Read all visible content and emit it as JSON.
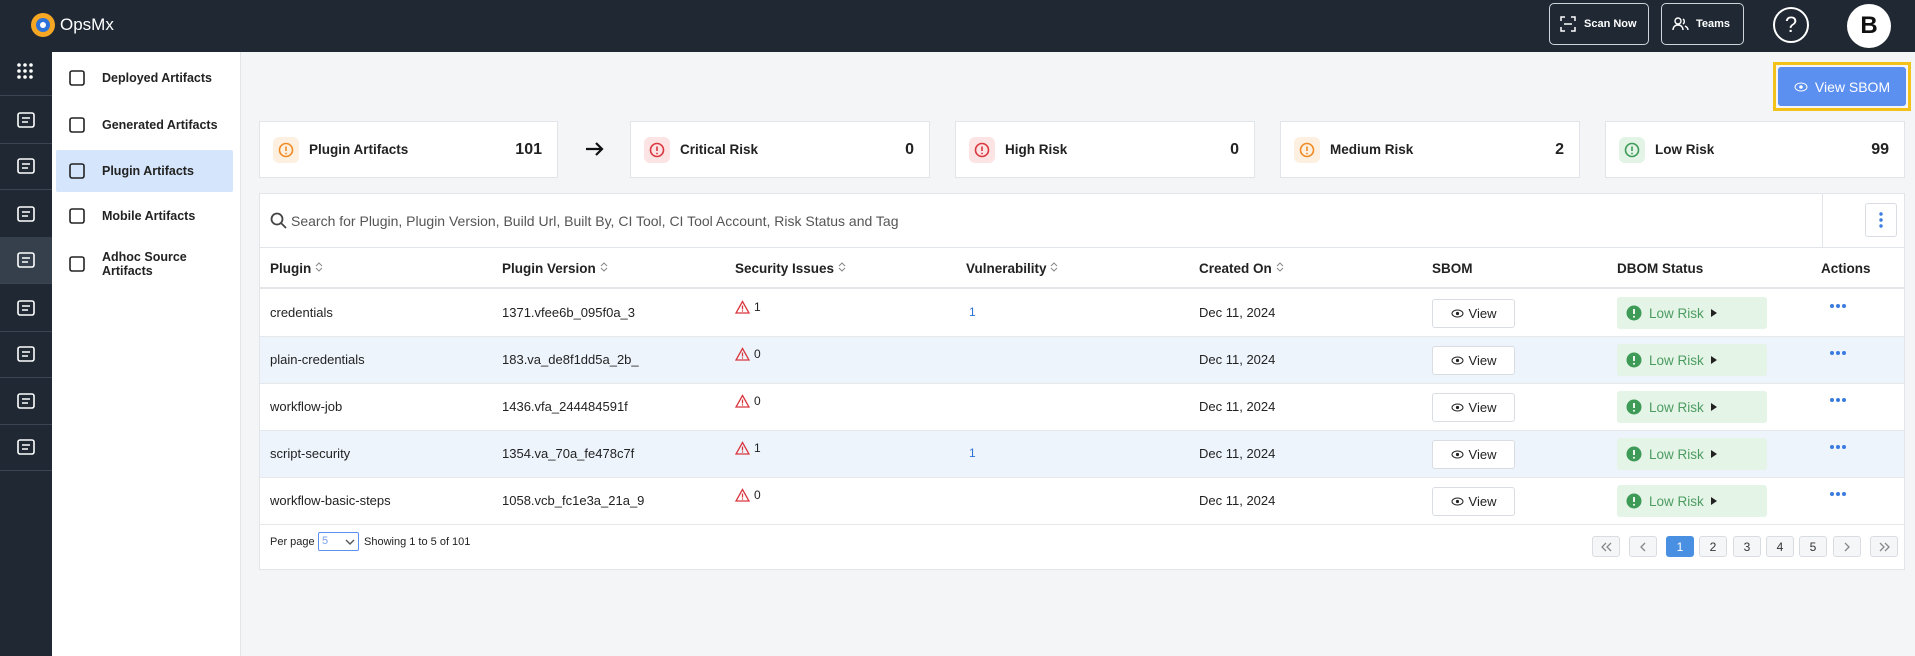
{
  "header": {
    "logo": "OpsMx",
    "buttons": [
      "Scan Now",
      "Teams"
    ],
    "help": "?",
    "avatar": "B"
  },
  "sidebar": {
    "items": [
      "Deployed Artifacts",
      "Generated Artifacts",
      "Plugin Artifacts",
      "Mobile Artifacts",
      "Adhoc Source Artifacts"
    ]
  },
  "actions": {
    "view_sbom": "View SBOM"
  },
  "summary": [
    {
      "label": "Plugin Artifacts",
      "value": 101
    },
    {
      "label": "Critical Risk",
      "value": 0
    },
    {
      "label": "High Risk",
      "value": 0
    },
    {
      "label": "Medium Risk",
      "value": 2
    },
    {
      "label": "Low Risk",
      "value": 99
    }
  ],
  "search": {
    "placeholder": "Search for Plugin, Plugin Version, Build Url, Built By, CI Tool, CI Tool Account, Risk Status and Tag"
  },
  "table": {
    "columns": [
      "Plugin",
      "Plugin Version",
      "Security Issues",
      "Vulnerability",
      "Created On",
      "SBOM",
      "DBOM Status",
      "Actions"
    ],
    "rows": [
      [
        "credentials",
        "1371.vfee6b_095f0a_3",
        1,
        1,
        "Dec 11, 2024",
        "View",
        "Low Risk"
      ],
      [
        "plain-credentials",
        "183.va_de8f1dd5a_2b_",
        0,
        null,
        "Dec 11, 2024",
        "View",
        "Low Risk"
      ],
      [
        "workflow-job",
        "1436.vfa_244484591f",
        0,
        null,
        "Dec 11, 2024",
        "View",
        "Low Risk"
      ],
      [
        "script-security",
        "1354.va_70a_fe478c7f",
        1,
        1,
        "Dec 11, 2024",
        "View",
        "Low Risk"
      ],
      [
        "workflow-basic-steps",
        "1058.vcb_fc1e3a_21a_9",
        0,
        null,
        "Dec 11, 2024",
        "View",
        "Low Risk"
      ]
    ]
  },
  "pagination": {
    "per_page_label": "Per page",
    "per_page": 5,
    "showing": "Showing 1 to 5 of 101",
    "pages": [
      1,
      2,
      3,
      4,
      5
    ],
    "current": 1
  }
}
